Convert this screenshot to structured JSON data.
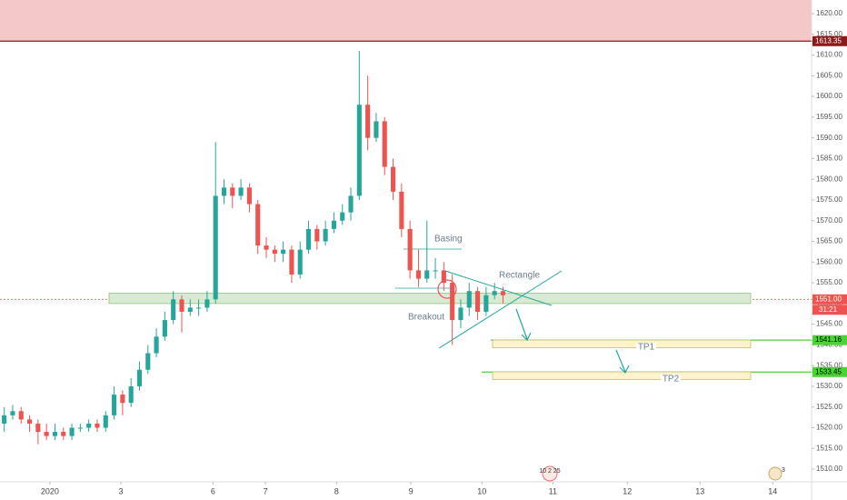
{
  "chart_data": {
    "type": "candlestick",
    "up_color": "#26a69a",
    "down_color": "#ef5350",
    "x": [
      0,
      1,
      2,
      3,
      4,
      5,
      6,
      7,
      8,
      9,
      10,
      11,
      12,
      13,
      14,
      15,
      16,
      17,
      18,
      19,
      20,
      21,
      22,
      23,
      24,
      25,
      26,
      27,
      28,
      29,
      30,
      31,
      32,
      33,
      34,
      35,
      36,
      37,
      38,
      39,
      40,
      41,
      42,
      43,
      44,
      45,
      46,
      47,
      48,
      49,
      50,
      51,
      52,
      53,
      54,
      55,
      56,
      57,
      58,
      59
    ],
    "open": [
      1521,
      1523,
      1524,
      1522,
      1521,
      1519,
      1518,
      1519,
      1518,
      1520,
      1520,
      1521,
      1520,
      1523,
      1528,
      1526,
      1530,
      1534,
      1538,
      1542,
      1546,
      1551,
      1548,
      1549,
      1549,
      1551,
      1576,
      1578,
      1576,
      1578,
      1574,
      1564,
      1563,
      1562,
      1563,
      1557,
      1563,
      1568,
      1565,
      1568,
      1570,
      1572,
      1576,
      1598,
      1590,
      1594,
      1583,
      1577,
      1568,
      1558,
      1556,
      1558,
      1558,
      1555,
      1546,
      1549,
      1553,
      1548,
      1552,
      1553
    ],
    "high": [
      1525,
      1525.5,
      1525,
      1523,
      1522,
      1521,
      1521,
      1520,
      1521,
      1521,
      1522,
      1522,
      1524,
      1530,
      1529,
      1532,
      1536,
      1540,
      1544,
      1548,
      1553,
      1552,
      1551,
      1551,
      1553,
      1589,
      1580,
      1579,
      1580,
      1579,
      1575,
      1566,
      1564,
      1565,
      1564,
      1565,
      1570,
      1569,
      1570,
      1572,
      1574,
      1578,
      1611,
      1605,
      1596,
      1595,
      1585,
      1579,
      1570,
      1563,
      1570,
      1561,
      1560,
      1557,
      1551,
      1555,
      1554,
      1554,
      1555,
      1554
    ],
    "low": [
      1519,
      1522,
      1521,
      1519,
      1516,
      1517,
      1517,
      1517,
      1517,
      1519,
      1519,
      1519,
      1519,
      1522,
      1523,
      1525,
      1529,
      1533,
      1537,
      1541,
      1545,
      1543,
      1547,
      1547,
      1548,
      1550,
      1574,
      1573,
      1575,
      1572,
      1562,
      1561,
      1560,
      1560,
      1555,
      1556,
      1562,
      1563,
      1564,
      1567,
      1569,
      1570,
      1575,
      1587,
      1589,
      1581,
      1575,
      1566,
      1556,
      1554,
      1555,
      1556,
      1553,
      1540,
      1544,
      1547,
      1546,
      1547,
      1551,
      1550
    ],
    "close": [
      1523,
      1524,
      1522,
      1521,
      1519,
      1518,
      1519,
      1518,
      1520,
      1520,
      1521,
      1520,
      1523,
      1528,
      1526,
      1530,
      1534,
      1538,
      1542,
      1546,
      1551,
      1548,
      1549,
      1549,
      1551,
      1576,
      1578,
      1576,
      1578,
      1574,
      1564,
      1563,
      1562,
      1563,
      1557,
      1563,
      1568,
      1565,
      1568,
      1570,
      1572,
      1576,
      1598,
      1590,
      1594,
      1583,
      1577,
      1568,
      1558,
      1556,
      1558,
      1558,
      1555,
      1546,
      1549,
      1553,
      1548,
      1552,
      1553,
      1552
    ],
    "xlim": [
      -0.5,
      95.5
    ],
    "xticks": [
      {
        "value": 5.4,
        "label": "2020"
      },
      {
        "value": 13.8,
        "label": "3"
      },
      {
        "value": 24.7,
        "label": "6"
      },
      {
        "value": 30.9,
        "label": "7"
      },
      {
        "value": 39.3,
        "label": "8"
      },
      {
        "value": 48.1,
        "label": "9"
      },
      {
        "value": 56.5,
        "label": "10"
      },
      {
        "value": 64.9,
        "label": "11"
      },
      {
        "value": 73.7,
        "label": "12"
      },
      {
        "value": 82.3,
        "label": "13"
      },
      {
        "value": 90.9,
        "label": "14"
      }
    ],
    "ylim": [
      1506.94,
      1623.29
    ],
    "yticks": [
      {
        "value": 1510,
        "label": "1510.00"
      },
      {
        "value": 1515,
        "label": "1515.00"
      },
      {
        "value": 1520,
        "label": "1520.00"
      },
      {
        "value": 1525,
        "label": "1525.00"
      },
      {
        "value": 1530,
        "label": "1530.00"
      },
      {
        "value": 1535,
        "label": "1535.00"
      },
      {
        "value": 1540,
        "label": "1540.00"
      },
      {
        "value": 1545,
        "label": "1545.00"
      },
      {
        "value": 1550,
        "label": "1550.00"
      },
      {
        "value": 1555,
        "label": "1555.00"
      },
      {
        "value": 1560,
        "label": "1560.00"
      },
      {
        "value": 1565,
        "label": "1565.00"
      },
      {
        "value": 1570,
        "label": "1570.00"
      },
      {
        "value": 1575,
        "label": "1575.00"
      },
      {
        "value": 1580,
        "label": "1580.00"
      },
      {
        "value": 1585,
        "label": "1585.00"
      },
      {
        "value": 1590,
        "label": "1590.00"
      },
      {
        "value": 1595,
        "label": "1595.00"
      },
      {
        "value": 1600,
        "label": "1600.00"
      },
      {
        "value": 1605,
        "label": "1605.00"
      },
      {
        "value": 1610,
        "label": "1610.00"
      },
      {
        "value": 1615,
        "label": "1615.00"
      },
      {
        "value": 1620,
        "label": "1620.00"
      }
    ],
    "levels": [
      {
        "value": 1613.35,
        "color": "#8b1a1a"
      },
      {
        "value": 1551,
        "label": "1551.00",
        "color": "#ef5350"
      },
      {
        "value": 1541.16,
        "color": "#4cd137"
      },
      {
        "value": 1533.45,
        "color": "#4cd137"
      }
    ],
    "countdown": "31:21",
    "annotations": {
      "basing": "Basing",
      "rectangle": "Rectangle",
      "breakout": "Breakout",
      "tp1": "TP1",
      "tp2": "TP2",
      "events": "10 2 25",
      "badge": "3"
    }
  }
}
